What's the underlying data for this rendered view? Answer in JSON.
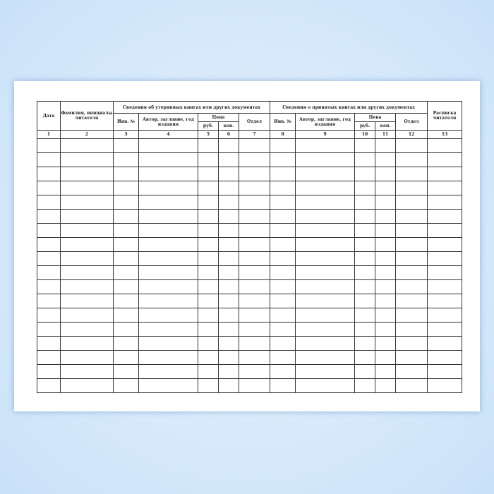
{
  "form": {
    "headers": {
      "date": "Дата",
      "reader_name": "Фамилия, инициалы читателя",
      "lost_group": "Сведения об утерянных книгах или других документах",
      "accepted_group": "Сведения о принятых книгах или других документах",
      "inv_no": "Инв. №",
      "author_title": "Автор, заглавие, год издания",
      "price": "Цена",
      "rub": "руб.",
      "kop": "коп.",
      "department": "Отдел",
      "reader_signature": "Расписка читателя"
    },
    "column_numbers": [
      "1",
      "2",
      "3",
      "4",
      "5",
      "6",
      "7",
      "8",
      "9",
      "10",
      "11",
      "12",
      "13"
    ],
    "empty_rows": 18
  }
}
